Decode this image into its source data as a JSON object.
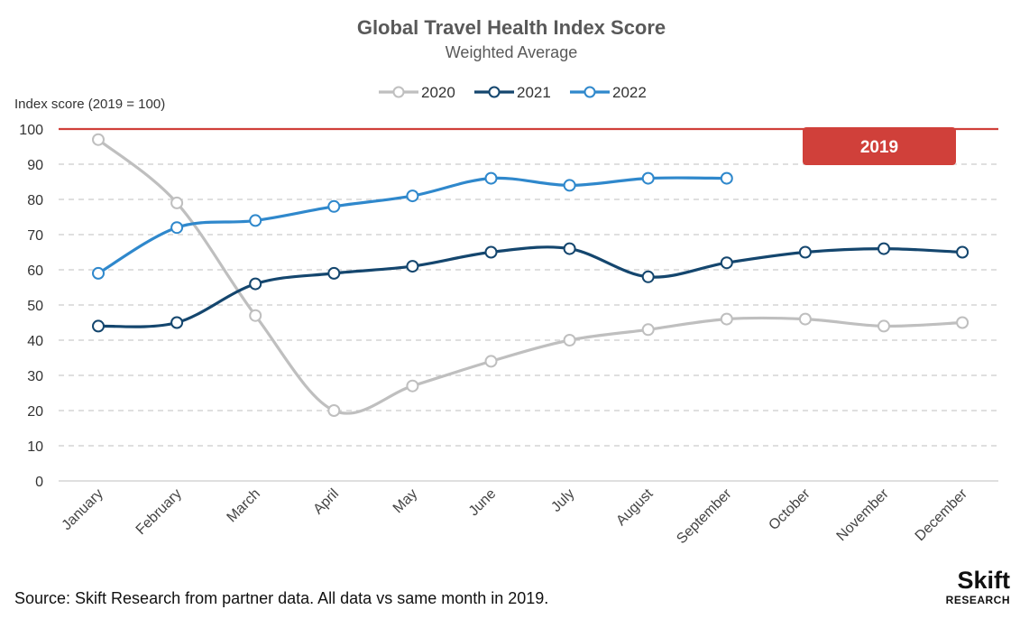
{
  "chart_data": {
    "type": "line",
    "title": "Global Travel Health Index Score",
    "subtitle": "Weighted Average",
    "ylabel": "Index score (2019 = 100)",
    "ylim": [
      0,
      100
    ],
    "yticks": [
      0,
      10,
      20,
      30,
      40,
      50,
      60,
      70,
      80,
      90,
      100
    ],
    "grid": true,
    "legend_position": "top-center",
    "categories": [
      "January",
      "February",
      "March",
      "April",
      "May",
      "June",
      "July",
      "August",
      "September",
      "October",
      "November",
      "December"
    ],
    "series": [
      {
        "name": "2020",
        "color": "#bfbfbf",
        "values": [
          97,
          79,
          47,
          20,
          27,
          34,
          40,
          43,
          46,
          46,
          44,
          45
        ]
      },
      {
        "name": "2021",
        "color": "#14466e",
        "values": [
          44,
          45,
          56,
          59,
          61,
          65,
          66,
          58,
          62,
          65,
          66,
          65
        ]
      },
      {
        "name": "2022",
        "color": "#2f88cc",
        "values": [
          59,
          72,
          74,
          78,
          81,
          86,
          84,
          86,
          86,
          null,
          null,
          null
        ]
      }
    ],
    "reference_line": {
      "value": 100,
      "label": "2019",
      "color": "#d0403a"
    },
    "source": "Source: Skift Research from partner data. All data vs same month in 2019."
  },
  "logo": {
    "name": "Skift",
    "sub": "RESEARCH"
  }
}
